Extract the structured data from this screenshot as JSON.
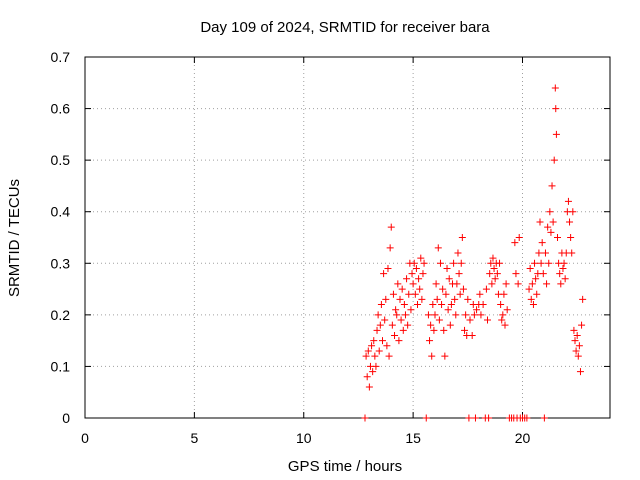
{
  "chart_data": {
    "type": "scatter",
    "title": "Day 109 of 2024, SRMTID for receiver bara",
    "xlabel": "GPS time / hours",
    "ylabel": "SRMTID / TECUs",
    "xlim": [
      0,
      24
    ],
    "ylim": [
      0,
      0.7
    ],
    "xticks": [
      0,
      5,
      10,
      15,
      20
    ],
    "yticks": [
      0,
      0.1,
      0.2,
      0.3,
      0.4,
      0.5,
      0.6,
      0.7
    ],
    "grid": true,
    "marker": "+",
    "color": "#ff0000",
    "series": [
      {
        "name": "SRMTID",
        "points": [
          [
            12.8,
            0.0
          ],
          [
            12.85,
            0.12
          ],
          [
            12.9,
            0.08
          ],
          [
            12.95,
            0.13
          ],
          [
            13.0,
            0.06
          ],
          [
            13.05,
            0.1
          ],
          [
            13.1,
            0.14
          ],
          [
            13.15,
            0.09
          ],
          [
            13.2,
            0.15
          ],
          [
            13.25,
            0.12
          ],
          [
            13.3,
            0.1
          ],
          [
            13.35,
            0.17
          ],
          [
            13.4,
            0.2
          ],
          [
            13.45,
            0.13
          ],
          [
            13.5,
            0.18
          ],
          [
            13.55,
            0.22
          ],
          [
            13.6,
            0.15
          ],
          [
            13.65,
            0.28
          ],
          [
            13.7,
            0.19
          ],
          [
            13.75,
            0.23
          ],
          [
            13.8,
            0.14
          ],
          [
            13.85,
            0.29
          ],
          [
            13.9,
            0.12
          ],
          [
            13.95,
            0.33
          ],
          [
            14.0,
            0.37
          ],
          [
            14.05,
            0.18
          ],
          [
            14.1,
            0.24
          ],
          [
            14.15,
            0.16
          ],
          [
            14.2,
            0.21
          ],
          [
            14.25,
            0.2
          ],
          [
            14.3,
            0.26
          ],
          [
            14.35,
            0.15
          ],
          [
            14.4,
            0.23
          ],
          [
            14.45,
            0.19
          ],
          [
            14.5,
            0.25
          ],
          [
            14.55,
            0.17
          ],
          [
            14.6,
            0.22
          ],
          [
            14.65,
            0.2
          ],
          [
            14.7,
            0.27
          ],
          [
            14.75,
            0.18
          ],
          [
            14.8,
            0.24
          ],
          [
            14.85,
            0.3
          ],
          [
            14.9,
            0.21
          ],
          [
            14.95,
            0.28
          ],
          [
            15.0,
            0.26
          ],
          [
            15.05,
            0.3
          ],
          [
            15.1,
            0.24
          ],
          [
            15.15,
            0.29
          ],
          [
            15.2,
            0.22
          ],
          [
            15.25,
            0.27
          ],
          [
            15.3,
            0.25
          ],
          [
            15.35,
            0.31
          ],
          [
            15.4,
            0.23
          ],
          [
            15.45,
            0.28
          ],
          [
            15.5,
            0.3
          ],
          [
            15.6,
            0.0
          ],
          [
            15.7,
            0.2
          ],
          [
            15.75,
            0.15
          ],
          [
            15.8,
            0.18
          ],
          [
            15.85,
            0.12
          ],
          [
            15.9,
            0.22
          ],
          [
            15.95,
            0.17
          ],
          [
            16.0,
            0.2
          ],
          [
            16.05,
            0.26
          ],
          [
            16.1,
            0.23
          ],
          [
            16.15,
            0.33
          ],
          [
            16.2,
            0.19
          ],
          [
            16.25,
            0.3
          ],
          [
            16.3,
            0.22
          ],
          [
            16.35,
            0.25
          ],
          [
            16.4,
            0.17
          ],
          [
            16.45,
            0.12
          ],
          [
            16.5,
            0.24
          ],
          [
            16.55,
            0.29
          ],
          [
            16.6,
            0.21
          ],
          [
            16.65,
            0.27
          ],
          [
            16.7,
            0.18
          ],
          [
            16.75,
            0.22
          ],
          [
            16.8,
            0.26
          ],
          [
            16.85,
            0.3
          ],
          [
            16.9,
            0.23
          ],
          [
            16.95,
            0.2
          ],
          [
            17.0,
            0.26
          ],
          [
            17.05,
            0.32
          ],
          [
            17.1,
            0.28
          ],
          [
            17.15,
            0.24
          ],
          [
            17.2,
            0.3
          ],
          [
            17.25,
            0.35
          ],
          [
            17.3,
            0.25
          ],
          [
            17.35,
            0.17
          ],
          [
            17.4,
            0.2
          ],
          [
            17.45,
            0.16
          ],
          [
            17.5,
            0.23
          ],
          [
            17.55,
            0.0
          ],
          [
            17.6,
            0.19
          ],
          [
            17.7,
            0.16
          ],
          [
            17.75,
            0.22
          ],
          [
            17.8,
            0.2
          ],
          [
            17.85,
            0.0
          ],
          [
            17.9,
            0.21
          ],
          [
            18.0,
            0.22
          ],
          [
            18.05,
            0.24
          ],
          [
            18.1,
            0.2
          ],
          [
            18.2,
            0.22
          ],
          [
            18.3,
            0.0
          ],
          [
            18.35,
            0.25
          ],
          [
            18.4,
            0.19
          ],
          [
            18.45,
            0.0
          ],
          [
            18.5,
            0.28
          ],
          [
            18.55,
            0.3
          ],
          [
            18.6,
            0.26
          ],
          [
            18.65,
            0.31
          ],
          [
            18.7,
            0.29
          ],
          [
            18.75,
            0.27
          ],
          [
            18.8,
            0.3
          ],
          [
            18.85,
            0.28
          ],
          [
            18.9,
            0.24
          ],
          [
            18.95,
            0.3
          ],
          [
            19.0,
            0.22
          ],
          [
            19.05,
            0.19
          ],
          [
            19.1,
            0.2
          ],
          [
            19.15,
            0.24
          ],
          [
            19.2,
            0.18
          ],
          [
            19.25,
            0.26
          ],
          [
            19.3,
            0.21
          ],
          [
            19.4,
            0.0
          ],
          [
            19.5,
            0.0
          ],
          [
            19.6,
            0.0
          ],
          [
            19.65,
            0.34
          ],
          [
            19.7,
            0.28
          ],
          [
            19.75,
            0.0
          ],
          [
            19.8,
            0.26
          ],
          [
            19.85,
            0.35
          ],
          [
            19.9,
            0.0
          ],
          [
            20.0,
            0.0
          ],
          [
            20.1,
            0.0
          ],
          [
            20.2,
            0.0
          ],
          [
            20.3,
            0.25
          ],
          [
            20.35,
            0.29
          ],
          [
            20.4,
            0.23
          ],
          [
            20.45,
            0.26
          ],
          [
            20.5,
            0.22
          ],
          [
            20.55,
            0.3
          ],
          [
            20.6,
            0.27
          ],
          [
            20.65,
            0.24
          ],
          [
            20.7,
            0.28
          ],
          [
            20.75,
            0.32
          ],
          [
            20.8,
            0.38
          ],
          [
            20.85,
            0.3
          ],
          [
            20.9,
            0.34
          ],
          [
            20.95,
            0.28
          ],
          [
            21.0,
            0.0
          ],
          [
            21.05,
            0.32
          ],
          [
            21.1,
            0.26
          ],
          [
            21.15,
            0.37
          ],
          [
            21.2,
            0.3
          ],
          [
            21.25,
            0.4
          ],
          [
            21.3,
            0.36
          ],
          [
            21.35,
            0.45
          ],
          [
            21.4,
            0.38
          ],
          [
            21.45,
            0.5
          ],
          [
            21.5,
            0.64
          ],
          [
            21.52,
            0.6
          ],
          [
            21.55,
            0.55
          ],
          [
            21.6,
            0.35
          ],
          [
            21.65,
            0.3
          ],
          [
            21.7,
            0.28
          ],
          [
            21.75,
            0.26
          ],
          [
            21.8,
            0.32
          ],
          [
            21.85,
            0.29
          ],
          [
            21.9,
            0.3
          ],
          [
            21.95,
            0.27
          ],
          [
            22.0,
            0.32
          ],
          [
            22.05,
            0.4
          ],
          [
            22.1,
            0.42
          ],
          [
            22.15,
            0.38
          ],
          [
            22.2,
            0.35
          ],
          [
            22.25,
            0.32
          ],
          [
            22.3,
            0.4
          ],
          [
            22.35,
            0.17
          ],
          [
            22.4,
            0.15
          ],
          [
            22.45,
            0.13
          ],
          [
            22.5,
            0.16
          ],
          [
            22.55,
            0.12
          ],
          [
            22.6,
            0.14
          ],
          [
            22.65,
            0.09
          ],
          [
            22.7,
            0.18
          ],
          [
            22.75,
            0.23
          ]
        ]
      }
    ]
  }
}
